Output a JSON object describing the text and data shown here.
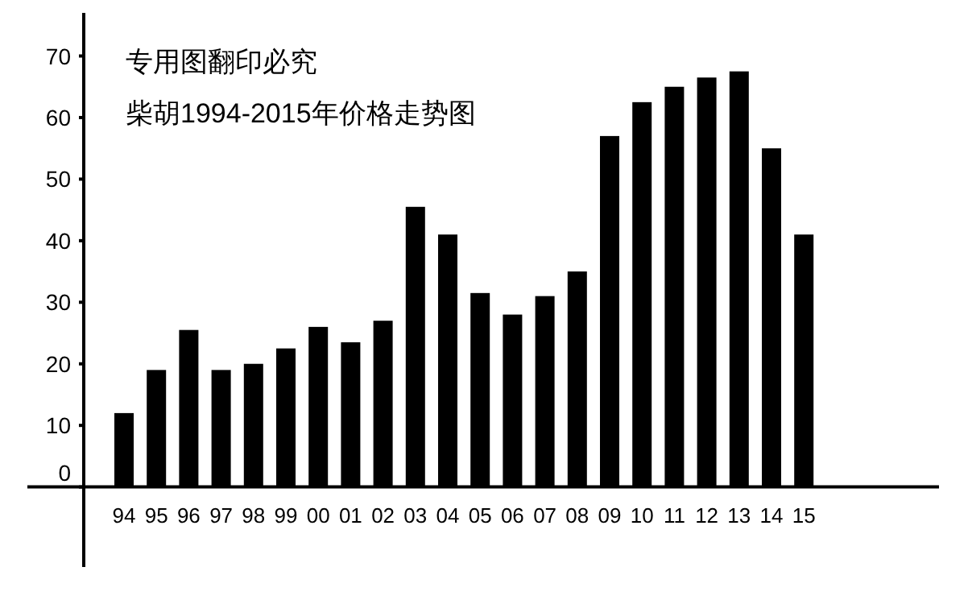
{
  "chart_data": {
    "type": "bar",
    "title": "柴胡1994-2015年价格走势图",
    "annotations": [
      "专用图翻印必究"
    ],
    "categories": [
      "94",
      "95",
      "96",
      "97",
      "98",
      "99",
      "00",
      "01",
      "02",
      "03",
      "04",
      "05",
      "06",
      "07",
      "08",
      "09",
      "10",
      "11",
      "12",
      "13",
      "14",
      "15"
    ],
    "values": [
      12,
      19,
      25.5,
      19,
      20,
      22.5,
      26,
      23.5,
      27,
      45.5,
      41,
      31.5,
      28,
      31,
      35,
      57,
      62.5,
      65,
      66.5,
      67.5,
      55,
      41
    ],
    "color": "#000000",
    "ylim": [
      -13,
      77
    ],
    "yticks": [
      0,
      10,
      20,
      30,
      40,
      50,
      60,
      70
    ]
  }
}
